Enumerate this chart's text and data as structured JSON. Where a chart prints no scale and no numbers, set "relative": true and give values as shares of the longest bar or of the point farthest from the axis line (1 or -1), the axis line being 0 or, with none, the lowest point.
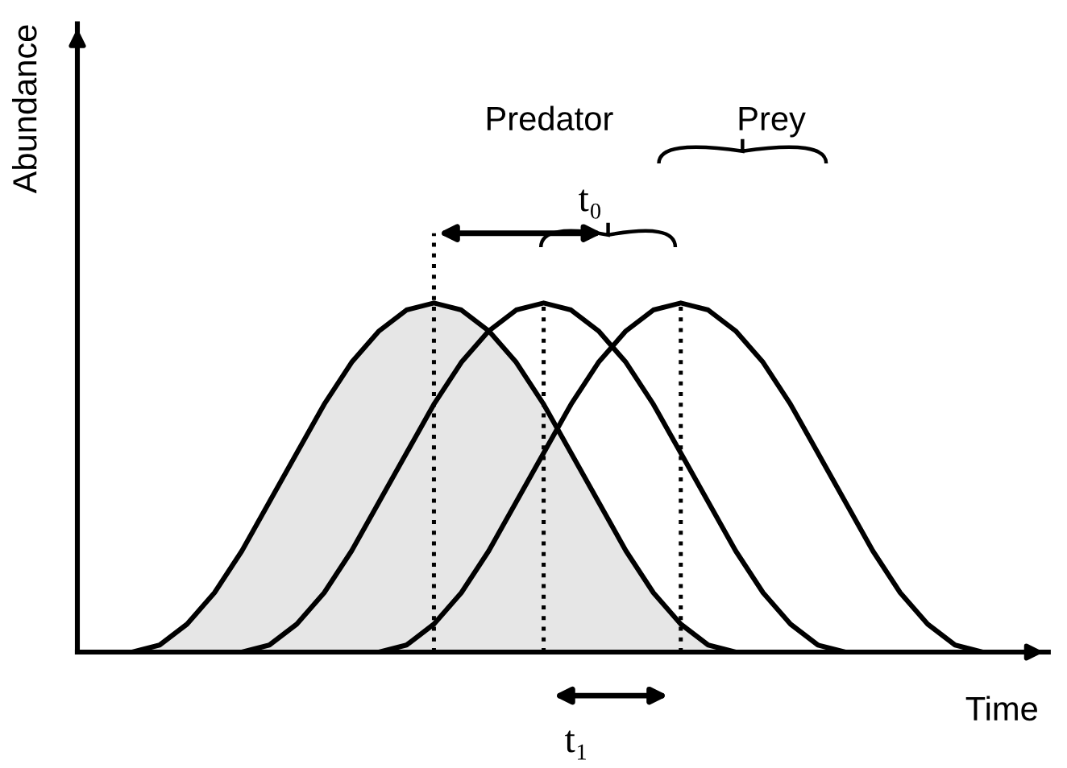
{
  "chart_data": {
    "type": "line",
    "relative": true,
    "xlabel": "Time",
    "ylabel": "Abundance",
    "categories": [
      null,
      null,
      null,
      null,
      null,
      null,
      null,
      null,
      null,
      null,
      null,
      null,
      null,
      null,
      null,
      null,
      null,
      null,
      null,
      null,
      null,
      null,
      null,
      null,
      null,
      null,
      null,
      null,
      null,
      null,
      null,
      null,
      null,
      null,
      null,
      null
    ],
    "series": [
      {
        "type": "area",
        "color": "#e6e6e6",
        "values": [
          null,
          null,
          0,
          0.02,
          0.08,
          0.17,
          0.29,
          0.43,
          0.57,
          0.71,
          0.83,
          0.92,
          0.98,
          1,
          0.98,
          0.92,
          0.83,
          0.71,
          0.57,
          0.43,
          0.29,
          0.17,
          0.08,
          0.02,
          0,
          null,
          null,
          null,
          null,
          null,
          null,
          null,
          null,
          null,
          null,
          null
        ]
      },
      {
        "color": "#000000",
        "values": [
          null,
          null,
          null,
          null,
          null,
          null,
          0,
          0.02,
          0.08,
          0.17,
          0.29,
          0.43,
          0.57,
          0.71,
          0.83,
          0.92,
          0.98,
          1,
          0.98,
          0.92,
          0.83,
          0.71,
          0.57,
          0.43,
          0.29,
          0.17,
          0.08,
          0.02,
          0,
          null,
          null,
          null,
          null,
          null,
          null,
          null
        ]
      },
      {
        "color": "#000000",
        "values": [
          null,
          null,
          null,
          null,
          null,
          null,
          null,
          null,
          null,
          null,
          null,
          0,
          0.02,
          0.08,
          0.17,
          0.29,
          0.43,
          0.57,
          0.71,
          0.83,
          0.92,
          0.98,
          1,
          0.98,
          0.92,
          0.83,
          0.71,
          0.57,
          0.43,
          0.29,
          0.17,
          0.08,
          0.02,
          0,
          null,
          null
        ]
      }
    ],
    "annotations": [
      "Predator",
      "Prey",
      "t₀",
      "t₁"
    ],
    "grid": "x",
    "legend": false,
    "marker": "none",
    "line_style": "solid"
  }
}
